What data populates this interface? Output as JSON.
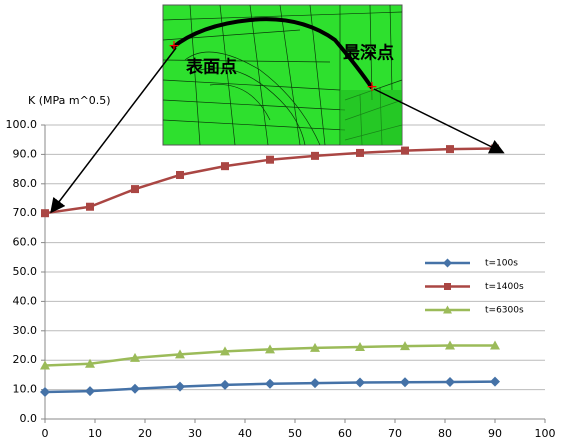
{
  "chart_data": {
    "type": "line",
    "y_label": "K (MPa m^0.5)",
    "x": [
      0,
      9,
      18,
      27,
      36,
      45,
      54,
      63,
      72,
      81,
      90
    ],
    "series": [
      {
        "name": "t=100s",
        "color": "#4572a7",
        "marker": "diamond",
        "values": [
          9.2,
          9.5,
          10.3,
          11,
          11.6,
          12,
          12.2,
          12.4,
          12.5,
          12.6,
          12.7
        ]
      },
      {
        "name": "t=1400s",
        "color": "#aa4643",
        "marker": "square",
        "values": [
          70,
          72.2,
          78.2,
          83,
          86,
          88.2,
          89.5,
          90.5,
          91.3,
          91.8,
          92
        ]
      },
      {
        "name": "t=6300s",
        "color": "#9bbb59",
        "marker": "triangle",
        "values": [
          18.2,
          18.8,
          20.8,
          22,
          23,
          23.7,
          24.2,
          24.5,
          24.8,
          25,
          25
        ]
      }
    ],
    "xlim": [
      0,
      100
    ],
    "ylim": [
      0,
      100
    ],
    "xticks": [
      0,
      10,
      20,
      30,
      40,
      50,
      60,
      70,
      80,
      90,
      100
    ],
    "yticks": [
      {
        "value": 0,
        "label": "0.0"
      },
      {
        "value": 10,
        "label": "10.0"
      },
      {
        "value": 20,
        "label": "20.0"
      },
      {
        "value": 30,
        "label": "30.0"
      },
      {
        "value": 40,
        "label": "40.0"
      },
      {
        "value": 50,
        "label": "50.0"
      },
      {
        "value": 60,
        "label": "60.0"
      },
      {
        "value": 70,
        "label": "70.0"
      },
      {
        "value": 80,
        "label": "80.0"
      },
      {
        "value": 90,
        "label": "90.0"
      },
      {
        "value": 100,
        "label": "100.0"
      }
    ],
    "grid": true,
    "legend": "right",
    "annotations": [
      "表面点",
      "最深点"
    ]
  }
}
